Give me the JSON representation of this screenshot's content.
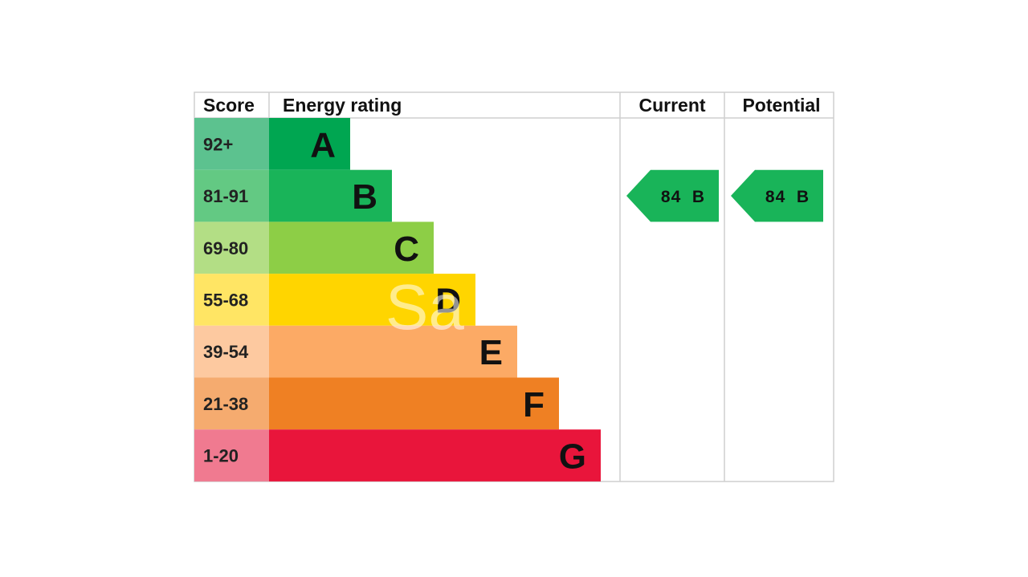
{
  "chart_data": {
    "type": "table",
    "columns": [
      "Score",
      "Energy rating",
      "Current",
      "Potential"
    ],
    "bands": [
      {
        "score": "92+",
        "letter": "A",
        "color": "#00a651",
        "score_color": "#5cc28f",
        "width_units": 1
      },
      {
        "score": "81-91",
        "letter": "B",
        "color": "#19b459",
        "score_color": "#63c983",
        "width_units": 2
      },
      {
        "score": "69-80",
        "letter": "C",
        "color": "#8dce46",
        "score_color": "#b3de85",
        "width_units": 3
      },
      {
        "score": "55-68",
        "letter": "D",
        "color": "#ffd500",
        "score_color": "#ffe564",
        "width_units": 4
      },
      {
        "score": "39-54",
        "letter": "E",
        "color": "#fcaa65",
        "score_color": "#fdc9a0",
        "width_units": 5
      },
      {
        "score": "21-38",
        "letter": "F",
        "color": "#ef8023",
        "score_color": "#f5ab6f",
        "width_units": 6
      },
      {
        "score": "1-20",
        "letter": "G",
        "color": "#e9153b",
        "score_color": "#f07a90",
        "width_units": 7
      }
    ],
    "current": {
      "value": 84,
      "letter": "B",
      "label": "84  B",
      "color": "#19b459"
    },
    "potential": {
      "value": 84,
      "letter": "B",
      "label": "84  B",
      "color": "#19b459"
    }
  },
  "watermark": "Sa"
}
